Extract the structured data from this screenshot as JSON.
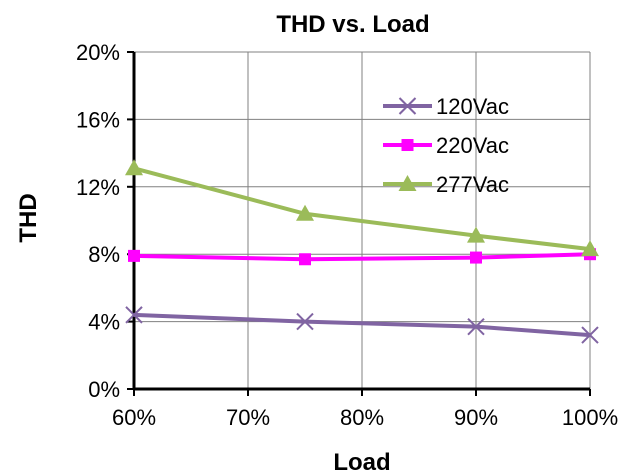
{
  "chart_data": {
    "type": "line",
    "title": "THD vs. Load",
    "xlabel": "Load",
    "ylabel": "THD",
    "x": [
      60,
      75,
      90,
      100
    ],
    "xlim": [
      60,
      100
    ],
    "ylim": [
      0,
      20
    ],
    "x_ticks": [
      "60%",
      "70%",
      "80%",
      "90%",
      "100%"
    ],
    "x_tick_values": [
      60,
      70,
      80,
      90,
      100
    ],
    "y_ticks": [
      "0%",
      "4%",
      "8%",
      "12%",
      "16%",
      "20%"
    ],
    "y_tick_values": [
      0,
      4,
      8,
      12,
      16,
      20
    ],
    "grid": true,
    "legend_position": "top-right",
    "series": [
      {
        "name": "120Vac",
        "values": [
          4.4,
          4.0,
          3.7,
          3.2
        ],
        "color": "#8064A2",
        "marker": "x"
      },
      {
        "name": "220Vac",
        "values": [
          7.9,
          7.7,
          7.8,
          8.0
        ],
        "color": "#FF00FF",
        "marker": "square"
      },
      {
        "name": "277Vac",
        "values": [
          13.1,
          10.4,
          9.1,
          8.3
        ],
        "color": "#9BBB59",
        "marker": "triangle"
      }
    ]
  }
}
